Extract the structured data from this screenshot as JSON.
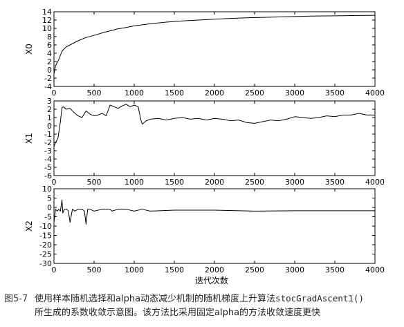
{
  "chart_data": {
    "type": "line",
    "x_shared_label": "迭代次数",
    "panels": [
      {
        "ylabel": "X0",
        "ylim": [
          -4,
          14
        ],
        "yticks": [
          -4,
          -2,
          0,
          2,
          4,
          6,
          8,
          10,
          12,
          14
        ],
        "xlim": [
          0,
          4000
        ],
        "xticks": [
          0,
          500,
          1000,
          1500,
          2000,
          2500,
          3000,
          3500,
          4000
        ],
        "series": [
          {
            "x": [
              0,
              20,
              60,
              100,
              150,
              200,
              250,
              300,
              400,
              500,
              600,
              700,
              800,
              900,
              1000,
              1200,
              1400,
              1600,
              1800,
              2000,
              2200,
              2400,
              2600,
              2800,
              3000,
              3200,
              3400,
              3600,
              3800,
              4000
            ],
            "y": [
              -1,
              1,
              2.5,
              4.5,
              5.5,
              6,
              6.5,
              7,
              7.8,
              8.3,
              8.9,
              9.4,
              9.9,
              10.2,
              10.6,
              11.1,
              11.5,
              11.8,
              12.0,
              12.2,
              12.4,
              12.55,
              12.65,
              12.75,
              12.85,
              12.95,
              13.0,
              13.05,
              13.1,
              13.15
            ]
          }
        ]
      },
      {
        "ylabel": "X1",
        "ylim": [
          -6,
          3
        ],
        "yticks": [
          -6,
          -5,
          -4,
          -3,
          -2,
          -1,
          0,
          1,
          2,
          3
        ],
        "xlim": [
          0,
          4000
        ],
        "xticks": [
          0,
          500,
          1000,
          1500,
          2000,
          2500,
          3000,
          3500,
          4000
        ],
        "series": [
          {
            "x": [
              0,
              20,
              50,
              80,
              100,
              120,
              150,
              200,
              250,
              300,
              350,
              400,
              450,
              500,
              550,
              600,
              650,
              700,
              750,
              800,
              850,
              900,
              950,
              1000,
              1050,
              1080,
              1100,
              1150,
              1200,
              1300,
              1400,
              1500,
              1600,
              1700,
              1800,
              1900,
              2000,
              2100,
              2200,
              2300,
              2400,
              2500,
              2600,
              2700,
              2800,
              2900,
              3000,
              3100,
              3200,
              3300,
              3400,
              3500,
              3600,
              3700,
              3800,
              3900,
              4000
            ],
            "y": [
              -2.5,
              -2.0,
              -1.5,
              0.5,
              2.2,
              2.3,
              2.0,
              2.1,
              1.6,
              1.2,
              1.0,
              1.8,
              1.4,
              1.2,
              1.3,
              1.5,
              1.2,
              2.5,
              2.3,
              2.1,
              2.4,
              2.6,
              2.3,
              2.5,
              2.3,
              0.8,
              0.2,
              0.6,
              0.8,
              0.9,
              0.7,
              0.9,
              1.0,
              0.8,
              0.9,
              0.7,
              0.9,
              0.8,
              0.6,
              0.7,
              0.4,
              0.3,
              0.5,
              0.7,
              0.6,
              0.8,
              1.1,
              1.0,
              0.9,
              1.0,
              1.2,
              1.1,
              1.3,
              1.3,
              1.5,
              1.3,
              1.3
            ]
          }
        ]
      },
      {
        "ylabel": "X2",
        "ylim": [
          -30,
          10
        ],
        "yticks": [
          -30,
          -25,
          -20,
          -15,
          -10,
          -5,
          0,
          5,
          10
        ],
        "xlim": [
          0,
          4000
        ],
        "xticks": [
          0,
          500,
          1000,
          1500,
          2000,
          2500,
          3000,
          3500,
          4000
        ],
        "series": [
          {
            "x": [
              0,
              20,
              40,
              60,
              80,
              100,
              110,
              130,
              160,
              180,
              200,
              230,
              260,
              300,
              350,
              380,
              400,
              420,
              450,
              500,
              600,
              700,
              720,
              800,
              900,
              1000,
              1100,
              1200,
              1500,
              2000,
              2500,
              3000,
              3500,
              4000
            ],
            "y": [
              -8,
              -1,
              -2,
              -1,
              -2,
              4,
              -3,
              -1,
              -1,
              -2,
              -8,
              -1,
              -2,
              -1,
              -1,
              -2,
              -9,
              -1,
              -1,
              -2,
              -1,
              -1,
              -2,
              -1,
              -1,
              -2,
              -1,
              -2,
              -1.5,
              -1.5,
              -2,
              -1.8,
              -1.8,
              -1.8
            ]
          }
        ]
      }
    ]
  },
  "caption": {
    "figure_no": "图5-7",
    "text_before_code": "使用样本随机选择和alpha动态减少机制的随机梯度上升算法",
    "code": "stocGradAscent1()",
    "line2": "所生成的系数收敛示意图。该方法比采用固定alpha的方法收敛速度更快"
  }
}
